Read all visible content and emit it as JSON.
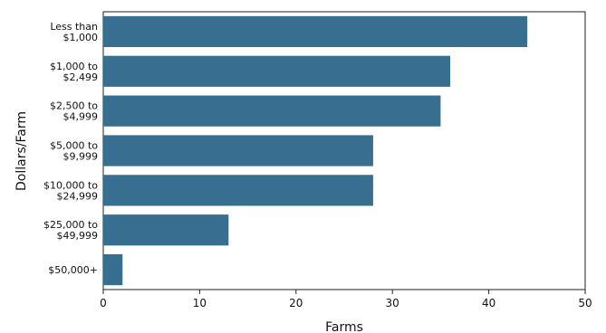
{
  "chart_data": {
    "type": "bar",
    "orientation": "horizontal",
    "categories": [
      [
        "Less than",
        "$1,000"
      ],
      [
        "$1,000 to",
        "$2,499"
      ],
      [
        "$2,500 to",
        "$4,999"
      ],
      [
        "$5,000 to",
        "$9,999"
      ],
      [
        "$10,000 to",
        "$24,999"
      ],
      [
        "$25,000 to",
        "$49,999"
      ],
      [
        "$50,000+"
      ]
    ],
    "values": [
      44,
      36,
      35,
      28,
      28,
      13,
      2
    ],
    "xlabel": "Farms",
    "ylabel": "Dollars/Farm",
    "xlim": [
      0,
      50
    ],
    "xticks": [
      0,
      10,
      20,
      30,
      40,
      50
    ],
    "grid": false,
    "bar_color": "#386f91"
  }
}
